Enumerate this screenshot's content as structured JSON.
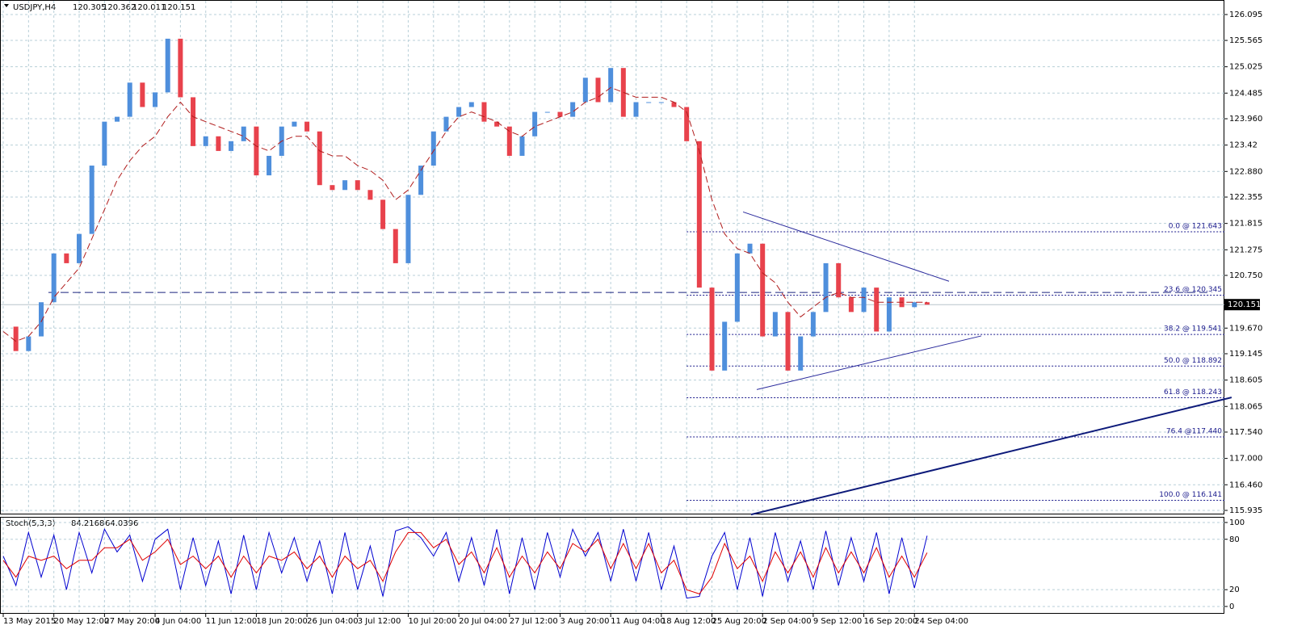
{
  "chart_data": [
    {
      "type": "candlestick",
      "symbol": "USDJPY,H4",
      "ohlc": [
        120.305,
        120.362,
        120.011,
        120.151
      ],
      "categories": [
        "13 May 2015",
        null,
        null,
        null,
        "20 May 12:00",
        null,
        null,
        null,
        "27 May 20:00",
        null,
        null,
        null,
        "4 Jun 04:00",
        null,
        null,
        null,
        "11 Jun 12:00",
        null,
        null,
        null,
        "18 Jun 20:00",
        null,
        null,
        null,
        "26 Jun 04:00",
        null,
        null,
        null,
        "3 Jul 12:00",
        null,
        null,
        null,
        "10 Jul 20:00",
        null,
        null,
        null,
        "20 Jul 04:00",
        null,
        null,
        null,
        "27 Jul 12:00",
        null,
        null,
        null,
        "3 Aug 20:00",
        null,
        null,
        null,
        "11 Aug 04:00",
        null,
        null,
        null,
        "18 Aug 12:00",
        null,
        null,
        null,
        "25 Aug 20:00",
        null,
        null,
        null,
        "2 Sep 04:00",
        null,
        null,
        null,
        "9 Sep 12:00",
        null,
        null,
        null,
        "16 Sep 20:00",
        null,
        null,
        null,
        "24 Sep 04:00",
        null
      ],
      "values": [
        119.7,
        119.2,
        119.5,
        120.2,
        121.2,
        121.0,
        121.6,
        123.0,
        123.9,
        124.0,
        124.7,
        124.2,
        124.5,
        125.6,
        124.4,
        123.4,
        123.6,
        123.3,
        123.5,
        123.8,
        122.8,
        123.2,
        123.8,
        123.9,
        123.7,
        122.6,
        122.5,
        122.7,
        122.5,
        122.3,
        121.7,
        121.0,
        122.4,
        123.0,
        123.7,
        124.0,
        124.2,
        124.3,
        123.9,
        123.8,
        123.2,
        123.6,
        124.1,
        124.1,
        124.0,
        124.3,
        124.8,
        124.3,
        125.0,
        124.0,
        124.3,
        124.3,
        124.3,
        124.2,
        123.5,
        120.5,
        118.8,
        119.8,
        121.2,
        121.4,
        119.5,
        120.0,
        118.8,
        119.5,
        120.0,
        121.0,
        120.3,
        120.0,
        120.5,
        119.6,
        120.3,
        120.1,
        120.2,
        120.151
      ],
      "up_color": "#4f8fdc",
      "down_color": "#e8424c",
      "ma": {
        "color": "#b01c1c",
        "values": [
          119.6,
          119.4,
          119.5,
          119.8,
          120.3,
          120.6,
          120.9,
          121.5,
          122.1,
          122.7,
          123.1,
          123.4,
          123.6,
          124.0,
          124.3,
          124.0,
          123.9,
          123.8,
          123.7,
          123.6,
          123.4,
          123.3,
          123.5,
          123.6,
          123.6,
          123.3,
          123.2,
          123.2,
          123.0,
          122.9,
          122.7,
          122.3,
          122.5,
          122.9,
          123.3,
          123.7,
          124.0,
          124.1,
          124.0,
          123.9,
          123.7,
          123.6,
          123.8,
          123.9,
          124.0,
          124.1,
          124.3,
          124.4,
          124.6,
          124.5,
          124.4,
          124.4,
          124.4,
          124.3,
          124.1,
          123.3,
          122.3,
          121.6,
          121.3,
          121.2,
          120.8,
          120.6,
          120.2,
          119.9,
          120.1,
          120.3,
          120.4,
          120.3,
          120.3,
          120.2,
          120.2,
          120.2,
          120.2,
          120.2
        ]
      },
      "ylim": [
        115.852,
        126.393
      ],
      "yticks": [
        126.095,
        125.565,
        125.025,
        124.485,
        {
          "value": 123.96,
          "label": "123.960"
        },
        123.42,
        {
          "value": 122.88,
          "label": "122.880"
        },
        122.355,
        121.815,
        121.275,
        {
          "value": 120.75,
          "label": "120.750"
        },
        {
          "value": 119.67,
          "label": "119.670"
        },
        119.145,
        118.605,
        118.065,
        {
          "value": 117.54,
          "label": "117.540"
        },
        {
          "value": 117,
          "label": "117.000"
        },
        {
          "value": 116.46,
          "label": "116.460"
        },
        115.935
      ],
      "last_price": 120.151,
      "hline": {
        "value": 120.4,
        "from": 3.57,
        "to": 95.5,
        "color": "#1a237e"
      },
      "fib": {
        "from": 54,
        "color": "#1a1a8c",
        "levels": [
          {
            "value": 121.643,
            "label": "0.0 @ 121.643"
          },
          {
            "value": 120.345,
            "label": "23.6 @ 120.345"
          },
          {
            "value": 119.541,
            "label": "38.2 @ 119.541"
          },
          {
            "value": 118.892,
            "label": "50.0 @ 118.892"
          },
          {
            "value": 118.243,
            "label": "61.8 @ 118.243"
          },
          {
            "value": 117.44,
            "label": "76.4 @117.440"
          },
          {
            "value": 116.141,
            "label": "100.0 @ 116.141"
          }
        ]
      },
      "trendlines": [
        {
          "color": "#2a2a9c",
          "width": 1,
          "points": [
            [
              58.46,
              122.05
            ],
            [
              74.73,
              120.63
            ]
          ]
        },
        {
          "color": "#2a2a9c",
          "width": 1,
          "points": [
            [
              59.54,
              118.41
            ],
            [
              77.28,
              119.51
            ]
          ]
        },
        {
          "color": "#0d1a7a",
          "width": 2,
          "points": [
            [
              59.09,
              115.85
            ],
            [
              97.06,
              118.25
            ]
          ]
        }
      ],
      "grid": true
    },
    {
      "type": "line",
      "title": "Stoch(5,3,3)",
      "series": [
        {
          "color": "#0000d0",
          "values": [
            60,
            25,
            88,
            35,
            85,
            20,
            88,
            40,
            92,
            65,
            85,
            30,
            80,
            92,
            20,
            82,
            25,
            78,
            15,
            85,
            20,
            88,
            40,
            82,
            30,
            78,
            15,
            88,
            20,
            72,
            12,
            90,
            95,
            82,
            60,
            88,
            30,
            82,
            25,
            92,
            15,
            82,
            20,
            88,
            35,
            92,
            60,
            88,
            30,
            92,
            30,
            88,
            20,
            72,
            10,
            12,
            60,
            88,
            20,
            82,
            12,
            88,
            30,
            78,
            20,
            90,
            25,
            82,
            30,
            88,
            15,
            82,
            22,
            84.2168
          ]
        },
        {
          "color": "#e00000",
          "values": [
            55,
            35,
            60,
            55,
            60,
            45,
            55,
            55,
            70,
            70,
            80,
            55,
            65,
            80,
            50,
            60,
            45,
            60,
            35,
            60,
            40,
            60,
            55,
            65,
            45,
            60,
            35,
            60,
            45,
            55,
            30,
            65,
            88,
            88,
            70,
            80,
            50,
            65,
            40,
            70,
            35,
            60,
            40,
            65,
            45,
            75,
            65,
            80,
            45,
            75,
            45,
            75,
            40,
            55,
            20,
            15,
            35,
            75,
            45,
            60,
            30,
            65,
            40,
            65,
            35,
            70,
            40,
            65,
            40,
            70,
            35,
            60,
            35,
            64.0396
          ]
        }
      ],
      "ylim": [
        -8.7,
        106.7
      ],
      "yticks": [
        100,
        80,
        20,
        0
      ],
      "grid": true
    }
  ]
}
